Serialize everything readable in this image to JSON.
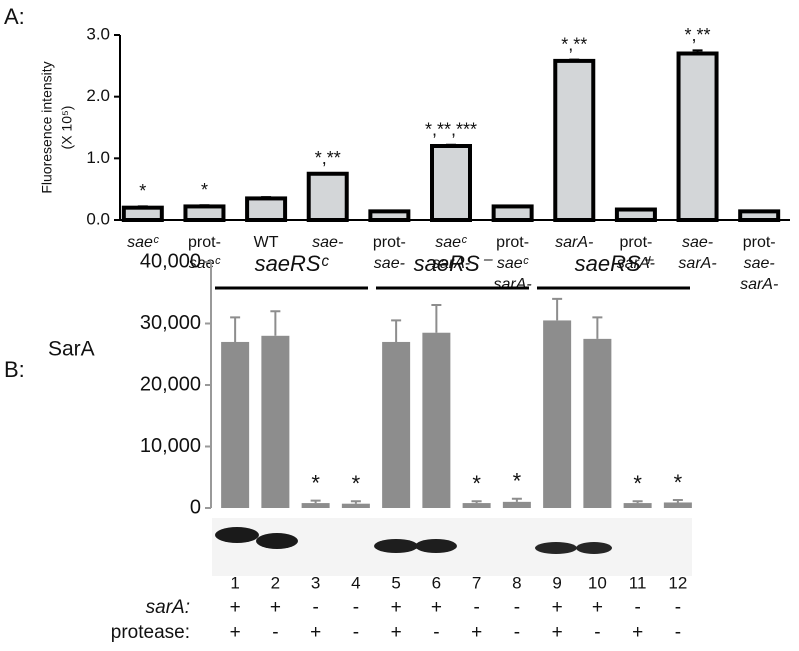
{
  "chart_data": [
    {
      "type": "bar",
      "panel": "A:",
      "ylabel": [
        "Fluoresence intensity",
        "(X 10⁵)"
      ],
      "categories": [
        [
          "saeᶜ"
        ],
        [
          "prot-",
          "saeᶜ"
        ],
        [
          "WT"
        ],
        [
          "sae-"
        ],
        [
          "prot-",
          "sae-"
        ],
        [
          "saeᶜ",
          "sarA-"
        ],
        [
          "prot-",
          "saeᶜ",
          "sarA-"
        ],
        [
          "sarA-"
        ],
        [
          "prot-",
          "sarA-"
        ],
        [
          "sae-",
          "sarA-"
        ],
        [
          "prot-",
          "sae-",
          "sarA-"
        ]
      ],
      "values": [
        0.2,
        0.22,
        0.35,
        0.75,
        0.14,
        1.2,
        0.22,
        2.58,
        0.17,
        2.7,
        0.14
      ],
      "errors": [
        0.02,
        0.02,
        0.02,
        0.01,
        0.01,
        0.02,
        0.01,
        0.02,
        0.01,
        0.05,
        0.01
      ],
      "annotations": [
        "*",
        "*",
        null,
        "*,**",
        null,
        "*,**,***",
        null,
        "*,**",
        null,
        "*,**",
        null
      ],
      "color": "#d3d6d8",
      "ylim": [
        0,
        3.0
      ],
      "yticks": [
        {
          "value": 0,
          "label": "0.0"
        },
        {
          "value": 1,
          "label": "1.0"
        },
        {
          "value": 2,
          "label": "2.0"
        },
        {
          "value": 3,
          "label": "3.0"
        }
      ]
    },
    {
      "type": "bar",
      "panel": "B:",
      "ylabel": "SarA",
      "categories": [
        "1",
        "2",
        "3",
        "4",
        "5",
        "6",
        "7",
        "8",
        "9",
        "10",
        "11",
        "12"
      ],
      "values": [
        27000,
        28000,
        800,
        700,
        27000,
        28500,
        800,
        1000,
        30500,
        27500,
        800,
        900
      ],
      "errors": [
        4000,
        4000,
        400,
        400,
        3500,
        4500,
        300,
        500,
        3500,
        3500,
        300,
        400
      ],
      "annotations": [
        null,
        null,
        "*",
        "*",
        null,
        null,
        "*",
        "*",
        null,
        null,
        "*",
        "*"
      ],
      "groups": [
        "saeRSᶜ",
        "saeRS⁻",
        "saeRS⁺"
      ],
      "rows": [
        {
          "label": "sarA:",
          "values": [
            "+",
            "+",
            "-",
            "-",
            "+",
            "+",
            "-",
            "-",
            "+",
            "+",
            "-",
            "-"
          ]
        },
        {
          "label": "protease:",
          "values": [
            "+",
            "-",
            "+",
            "-",
            "+",
            "-",
            "+",
            "-",
            "+",
            "-",
            "+",
            "-"
          ]
        }
      ],
      "color": "#8d8d8d",
      "ylim": [
        0,
        40000
      ],
      "yticks": [
        0,
        {
          "value": 10000,
          "label": "10,000"
        },
        {
          "value": 20000,
          "label": "20,000"
        },
        {
          "value": 30000,
          "label": "30,000"
        },
        {
          "value": 40000,
          "label": "40,000"
        }
      ]
    }
  ]
}
